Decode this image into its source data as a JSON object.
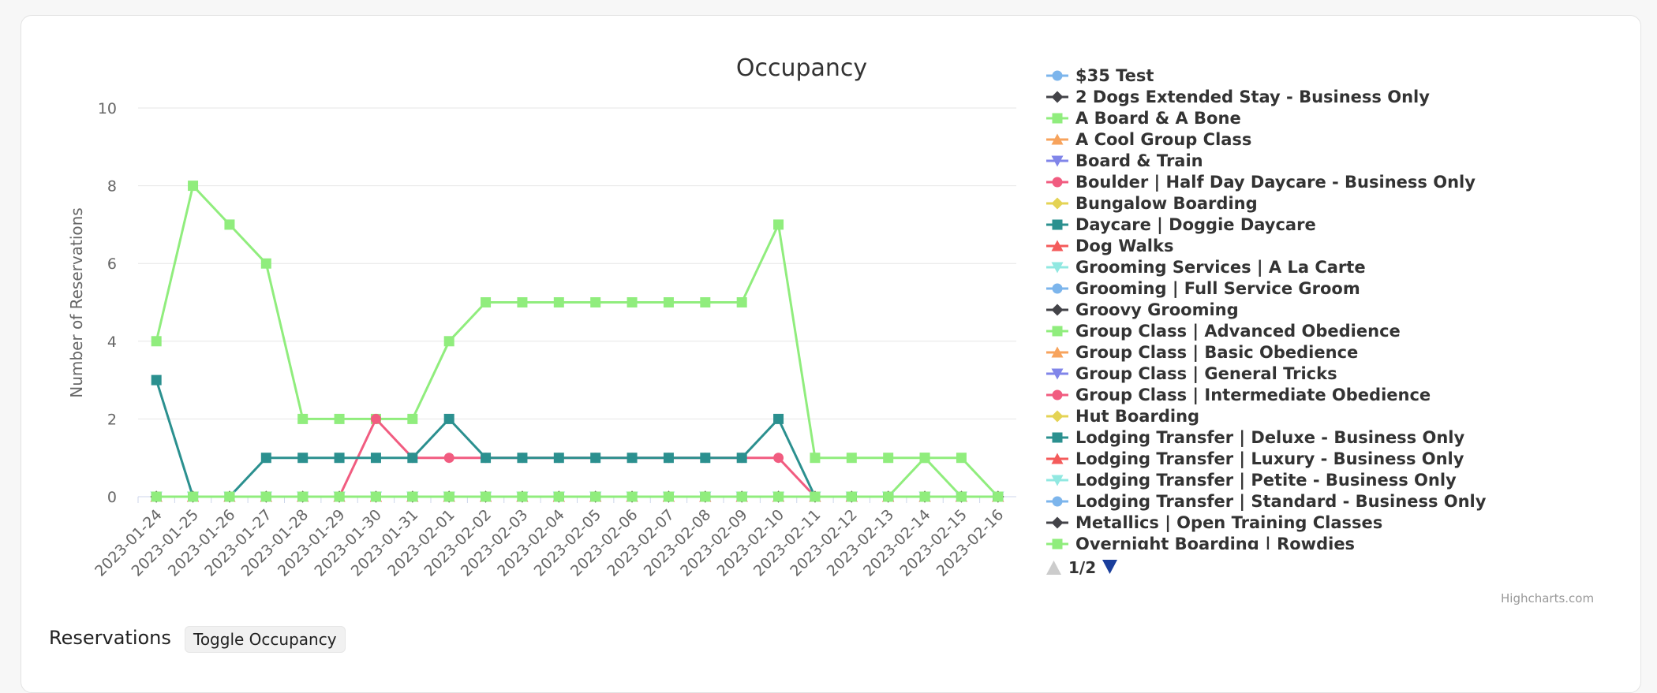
{
  "chart_data": {
    "type": "line",
    "title": "Occupancy",
    "ylabel": "Number of Reservations",
    "xlabel": "",
    "ylim": [
      0,
      10
    ],
    "yticks": [
      0,
      2,
      4,
      6,
      8,
      10
    ],
    "grid": true,
    "legend_placement": "right",
    "categories": [
      "2023-01-24",
      "2023-01-25",
      "2023-01-26",
      "2023-01-27",
      "2023-01-28",
      "2023-01-29",
      "2023-01-30",
      "2023-01-31",
      "2023-02-01",
      "2023-02-02",
      "2023-02-03",
      "2023-02-04",
      "2023-02-05",
      "2023-02-06",
      "2023-02-07",
      "2023-02-08",
      "2023-02-09",
      "2023-02-10",
      "2023-02-11",
      "2023-02-12",
      "2023-02-13",
      "2023-02-14",
      "2023-02-15",
      "2023-02-16"
    ],
    "series": [
      {
        "name": "$35 Test",
        "color": "#7cb5ec",
        "marker": "circle",
        "values": [
          0,
          0,
          0,
          0,
          0,
          0,
          0,
          0,
          0,
          0,
          0,
          0,
          0,
          0,
          0,
          0,
          0,
          0,
          0,
          0,
          0,
          0,
          0,
          0
        ]
      },
      {
        "name": "2 Dogs Extended Stay - Business Only",
        "color": "#434348",
        "marker": "diamond",
        "values": [
          0,
          0,
          0,
          0,
          0,
          0,
          0,
          0,
          0,
          0,
          0,
          0,
          0,
          0,
          0,
          0,
          0,
          0,
          0,
          0,
          0,
          0,
          0,
          0
        ]
      },
      {
        "name": "A Board & A Bone",
        "color": "#90ed7d",
        "marker": "square",
        "values": [
          4,
          8,
          7,
          6,
          2,
          2,
          2,
          2,
          4,
          5,
          5,
          5,
          5,
          5,
          5,
          5,
          5,
          7,
          1,
          1,
          1,
          1,
          1,
          0
        ]
      },
      {
        "name": "A Cool Group Class",
        "color": "#f7a35c",
        "marker": "triangle",
        "values": [
          0,
          0,
          0,
          0,
          0,
          0,
          0,
          0,
          0,
          0,
          0,
          0,
          0,
          0,
          0,
          0,
          0,
          0,
          0,
          0,
          0,
          0,
          0,
          0
        ]
      },
      {
        "name": "Board & Train",
        "color": "#8085e9",
        "marker": "triangle-down",
        "values": [
          0,
          0,
          0,
          0,
          0,
          0,
          0,
          0,
          0,
          0,
          0,
          0,
          0,
          0,
          0,
          0,
          0,
          0,
          0,
          0,
          0,
          0,
          0,
          0
        ]
      },
      {
        "name": "Boulder | Half Day Daycare - Business Only",
        "color": "#f15c80",
        "marker": "circle",
        "values": [
          0,
          0,
          0,
          0,
          0,
          0,
          2,
          1,
          1,
          1,
          1,
          1,
          1,
          1,
          1,
          1,
          1,
          1,
          0,
          0,
          0,
          0,
          0,
          0
        ]
      },
      {
        "name": "Bungalow Boarding",
        "color": "#e4d354",
        "marker": "diamond",
        "values": [
          0,
          0,
          0,
          0,
          0,
          0,
          0,
          0,
          0,
          0,
          0,
          0,
          0,
          0,
          0,
          0,
          0,
          0,
          0,
          0,
          0,
          0,
          0,
          0
        ]
      },
      {
        "name": "Daycare | Doggie Daycare",
        "color": "#2b908f",
        "marker": "square",
        "values": [
          3,
          0,
          0,
          1,
          1,
          1,
          1,
          1,
          2,
          1,
          1,
          1,
          1,
          1,
          1,
          1,
          1,
          2,
          0,
          0,
          0,
          0,
          0,
          0
        ]
      },
      {
        "name": "Dog Walks",
        "color": "#f45b5b",
        "marker": "triangle",
        "values": [
          0,
          0,
          0,
          0,
          0,
          0,
          0,
          0,
          0,
          0,
          0,
          0,
          0,
          0,
          0,
          0,
          0,
          0,
          0,
          0,
          0,
          0,
          0,
          0
        ]
      },
      {
        "name": "Grooming Services | A La Carte",
        "color": "#91e8e1",
        "marker": "triangle-down",
        "values": [
          0,
          0,
          0,
          0,
          0,
          0,
          0,
          0,
          0,
          0,
          0,
          0,
          0,
          0,
          0,
          0,
          0,
          0,
          0,
          0,
          0,
          0,
          0,
          0
        ]
      },
      {
        "name": "Grooming | Full Service Groom",
        "color": "#7cb5ec",
        "marker": "circle",
        "values": [
          0,
          0,
          0,
          0,
          0,
          0,
          0,
          0,
          0,
          0,
          0,
          0,
          0,
          0,
          0,
          0,
          0,
          0,
          0,
          0,
          0,
          0,
          0,
          0
        ]
      },
      {
        "name": "Groovy Grooming",
        "color": "#434348",
        "marker": "diamond",
        "values": [
          0,
          0,
          0,
          0,
          0,
          0,
          0,
          0,
          0,
          0,
          0,
          0,
          0,
          0,
          0,
          0,
          0,
          0,
          0,
          0,
          0,
          0,
          0,
          0
        ]
      },
      {
        "name": "Group Class | Advanced Obedience",
        "color": "#90ed7d",
        "marker": "square",
        "values": [
          0,
          0,
          0,
          0,
          0,
          0,
          0,
          0,
          0,
          0,
          0,
          0,
          0,
          0,
          0,
          0,
          0,
          0,
          0,
          0,
          0,
          1,
          0,
          0
        ]
      },
      {
        "name": "Group Class | Basic Obedience",
        "color": "#f7a35c",
        "marker": "triangle",
        "values": [
          0,
          0,
          0,
          0,
          0,
          0,
          0,
          0,
          0,
          0,
          0,
          0,
          0,
          0,
          0,
          0,
          0,
          0,
          0,
          0,
          0,
          0,
          0,
          0
        ]
      },
      {
        "name": "Group Class | General Tricks",
        "color": "#8085e9",
        "marker": "triangle-down",
        "values": [
          0,
          0,
          0,
          0,
          0,
          0,
          0,
          0,
          0,
          0,
          0,
          0,
          0,
          0,
          0,
          0,
          0,
          0,
          0,
          0,
          0,
          0,
          0,
          0
        ]
      },
      {
        "name": "Group Class | Intermediate Obedience",
        "color": "#f15c80",
        "marker": "circle",
        "values": [
          0,
          0,
          0,
          0,
          0,
          0,
          0,
          0,
          0,
          0,
          0,
          0,
          0,
          0,
          0,
          0,
          0,
          0,
          0,
          0,
          0,
          0,
          0,
          0
        ]
      },
      {
        "name": "Hut Boarding",
        "color": "#e4d354",
        "marker": "diamond",
        "values": [
          0,
          0,
          0,
          0,
          0,
          0,
          0,
          0,
          0,
          0,
          0,
          0,
          0,
          0,
          0,
          0,
          0,
          0,
          0,
          0,
          0,
          0,
          0,
          0
        ]
      },
      {
        "name": "Lodging Transfer | Deluxe - Business Only",
        "color": "#2b908f",
        "marker": "square",
        "values": [
          0,
          0,
          0,
          0,
          0,
          0,
          0,
          0,
          0,
          0,
          0,
          0,
          0,
          0,
          0,
          0,
          0,
          0,
          0,
          0,
          0,
          0,
          0,
          0
        ]
      },
      {
        "name": "Lodging Transfer | Luxury - Business Only",
        "color": "#f45b5b",
        "marker": "triangle",
        "values": [
          0,
          0,
          0,
          0,
          0,
          0,
          0,
          0,
          0,
          0,
          0,
          0,
          0,
          0,
          0,
          0,
          0,
          0,
          0,
          0,
          0,
          0,
          0,
          0
        ]
      },
      {
        "name": "Lodging Transfer | Petite - Business Only",
        "color": "#91e8e1",
        "marker": "triangle-down",
        "values": [
          0,
          0,
          0,
          0,
          0,
          0,
          0,
          0,
          0,
          0,
          0,
          0,
          0,
          0,
          0,
          0,
          0,
          0,
          0,
          0,
          0,
          0,
          0,
          0
        ]
      },
      {
        "name": "Lodging Transfer | Standard - Business Only",
        "color": "#7cb5ec",
        "marker": "circle",
        "values": [
          0,
          0,
          0,
          0,
          0,
          0,
          0,
          0,
          0,
          0,
          0,
          0,
          0,
          0,
          0,
          0,
          0,
          0,
          0,
          0,
          0,
          0,
          0,
          0
        ]
      },
      {
        "name": "Metallics | Open Training Classes",
        "color": "#434348",
        "marker": "diamond",
        "values": [
          0,
          0,
          0,
          0,
          0,
          0,
          0,
          0,
          0,
          0,
          0,
          0,
          0,
          0,
          0,
          0,
          0,
          0,
          0,
          0,
          0,
          0,
          0,
          0
        ]
      },
      {
        "name": "Overnight Boarding | Rowdies",
        "color": "#90ed7d",
        "marker": "square",
        "values": [
          0,
          0,
          0,
          0,
          0,
          0,
          0,
          0,
          0,
          0,
          0,
          0,
          0,
          0,
          0,
          0,
          0,
          0,
          0,
          0,
          0,
          0,
          0,
          0
        ]
      }
    ]
  },
  "legend": {
    "pager_text": "1/2",
    "pager_up_icon": "triangle-up-icon",
    "pager_down_icon": "triangle-down-icon",
    "active_color": "#1a3e9c",
    "inactive_color": "#cccccc"
  },
  "credits": "Highcharts.com",
  "footer": {
    "title": "Reservations",
    "toggle_label": "Toggle Occupancy"
  }
}
